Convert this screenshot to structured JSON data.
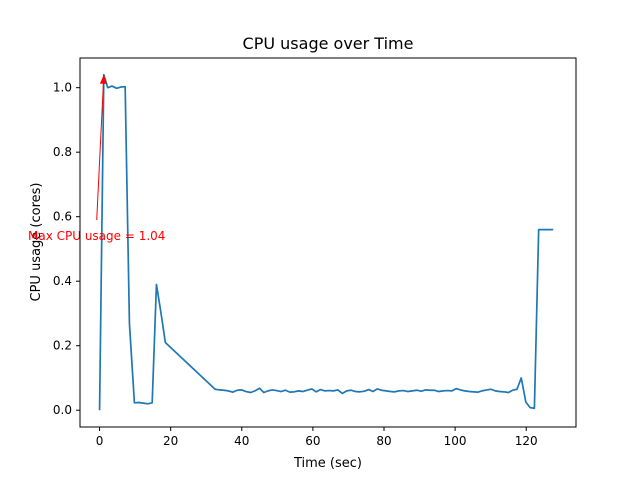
{
  "chart_data": {
    "type": "line",
    "title": "CPU usage over Time",
    "xlabel": "Time (sec)",
    "ylabel": "CPU usage (cores)",
    "xlim": [
      -5.5,
      134
    ],
    "ylim": [
      -0.052,
      1.092
    ],
    "xticks": [
      0,
      20,
      40,
      60,
      80,
      100,
      120
    ],
    "xtick_labels": [
      "0",
      "20",
      "40",
      "60",
      "80",
      "100",
      "120"
    ],
    "yticks": [
      0.0,
      0.2,
      0.4,
      0.6,
      0.8,
      1.0
    ],
    "ytick_labels": [
      "0.0",
      "0.2",
      "0.4",
      "0.6",
      "0.8",
      "1.0"
    ],
    "grid": false,
    "colors": {
      "line": "#1f77b4",
      "annotation": "#ff0000",
      "axes": "#000000"
    },
    "series": [
      {
        "x": [
          0,
          1.2,
          2.3,
          3.5,
          4.8,
          6.0,
          7.2,
          8.4,
          9.8,
          11.0,
          12.3,
          13.6,
          14.8,
          16.0,
          17.3,
          18.5,
          32.5,
          33.8,
          35.0,
          36.2,
          37.5,
          38.7,
          40.0,
          41.2,
          42.5,
          43.7,
          45.0,
          46.2,
          47.4,
          48.6,
          49.8,
          51.0,
          52.3,
          53.5,
          54.7,
          56.0,
          57.2,
          58.4,
          59.7,
          60.9,
          62.1,
          63.3,
          64.5,
          65.8,
          67.0,
          68.3,
          69.5,
          70.7,
          72.0,
          73.2,
          74.5,
          75.7,
          76.9,
          78.1,
          79.3,
          80.6,
          81.8,
          83.0,
          84.2,
          85.5,
          86.7,
          88.0,
          89.2,
          90.5,
          91.7,
          92.9,
          94.1,
          95.4,
          96.6,
          97.8,
          99.1,
          100.3,
          101.5,
          102.7,
          104.0,
          105.2,
          106.4,
          107.6,
          108.9,
          110.1,
          111.3,
          112.5,
          113.8,
          115.0,
          116.2,
          117.4,
          118.6,
          119.9,
          121.1,
          122.3,
          123.5,
          124.8,
          126.0,
          127.1,
          127.6
        ],
        "y": [
          0.0,
          1.04,
          1.0,
          1.005,
          0.998,
          1.002,
          1.003,
          0.27,
          0.023,
          0.024,
          0.022,
          0.02,
          0.023,
          0.39,
          0.3,
          0.21,
          0.065,
          0.063,
          0.062,
          0.06,
          0.056,
          0.062,
          0.063,
          0.058,
          0.055,
          0.06,
          0.068,
          0.055,
          0.06,
          0.063,
          0.061,
          0.058,
          0.062,
          0.056,
          0.057,
          0.06,
          0.058,
          0.062,
          0.066,
          0.057,
          0.064,
          0.06,
          0.061,
          0.06,
          0.063,
          0.052,
          0.06,
          0.062,
          0.058,
          0.057,
          0.059,
          0.064,
          0.058,
          0.066,
          0.062,
          0.06,
          0.058,
          0.057,
          0.06,
          0.061,
          0.058,
          0.06,
          0.062,
          0.059,
          0.063,
          0.062,
          0.062,
          0.058,
          0.06,
          0.061,
          0.06,
          0.067,
          0.063,
          0.06,
          0.058,
          0.057,
          0.056,
          0.06,
          0.063,
          0.065,
          0.06,
          0.058,
          0.057,
          0.055,
          0.062,
          0.065,
          0.1,
          0.025,
          0.008,
          0.006,
          0.56,
          0.56,
          0.56,
          0.56,
          0.56
        ]
      }
    ],
    "annotation": {
      "text": "Max CPU usage = 1.04",
      "xy": [
        1.2,
        1.04
      ],
      "xytext": [
        -0.8,
        0.59
      ]
    }
  }
}
